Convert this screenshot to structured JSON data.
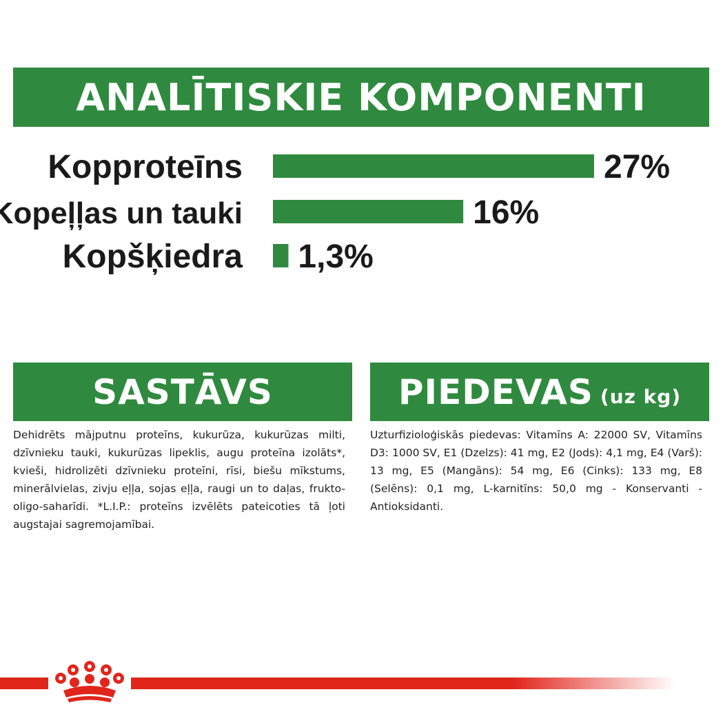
{
  "headings": {
    "analytics": "ANALĪTISKIE KOMPONENTI",
    "composition": "SASTĀVS",
    "additives": "PIEDEVAS",
    "additives_unit": "(uz kg)"
  },
  "chart_data": {
    "type": "bar",
    "orientation": "horizontal",
    "categories": [
      "Kopproteīns",
      "Kopeļļas un tauki",
      "Kopšķiedra"
    ],
    "values": [
      27,
      16,
      1.3
    ],
    "value_labels": [
      "27%",
      "16%",
      "1,3%"
    ],
    "unit": "%",
    "xlim": [
      0,
      27
    ],
    "grid": false,
    "bar_color": "#2f8a3f"
  },
  "composition_text": "Dehidrēts mājputnu proteīns, kukurūza, kukurūzas milti, dzīvnieku tauki, kukurūzas lipeklis, augu proteīna izolāts*, kvieši, hidrolizēti dzīvnieku proteīni, rīsi, biešu mīkstums, minerālvielas, zivju eļļa, sojas eļļa, raugi un to daļas, frukto-oligo-saharīdi. *L.I.P.: proteīns izvēlēts pateicoties tā ļoti augstajai sagremojamībai.",
  "additives_text": "Uzturfizioloģiskās piedevas: Vitamīns A: 22000 SV, Vitamīns D3: 1000 SV, E1 (Dzelzs): 41 mg, E2 (Jods): 4,1 mg, E4 (Varš): 13 mg, E5 (Mangāns): 54 mg, E6 (Cinks): 133 mg, E8 (Selēns): 0,1 mg, L-karnitīns: 50,0 mg - Konservanti - Antioksidanti.",
  "colors": {
    "green": "#2f8a3f",
    "red": "#e1251b"
  },
  "icons": {
    "footer_logo": "royal-crown-icon"
  }
}
